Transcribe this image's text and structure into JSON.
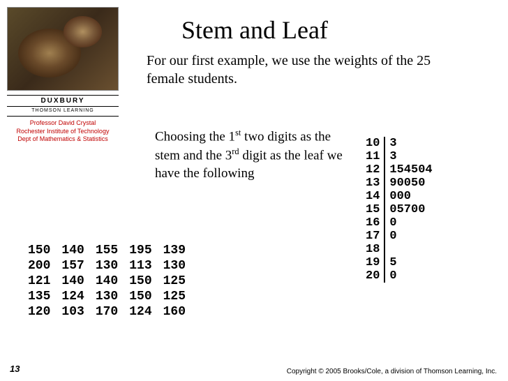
{
  "title": "Stem and Leaf",
  "intro": "For our first example, we use the weights of the 25 female students.",
  "choosing_html": "Choosing the 1<sup>st</sup> two digits as the stem and the 3<sup>rd</sup> digit as the leaf we have the following",
  "publisher": "DUXBURY",
  "publisher_sub": "THOMSON LEARNING",
  "professor": {
    "name": "Professor David Crystal",
    "inst": "Rochester Institute of Technology",
    "dept": "Dept of Mathematics & Statistics"
  },
  "raw_data": {
    "rows": [
      [
        "150",
        "140",
        "155",
        "195",
        "139"
      ],
      [
        "200",
        "157",
        "130",
        "113",
        "130"
      ],
      [
        "121",
        "140",
        "140",
        "150",
        "125"
      ],
      [
        "135",
        "124",
        "130",
        "150",
        "125"
      ],
      [
        "120",
        "103",
        "170",
        "124",
        "160"
      ]
    ]
  },
  "stem_leaf": {
    "rows": [
      {
        "stem": "10",
        "leaf": "3"
      },
      {
        "stem": "11",
        "leaf": "3"
      },
      {
        "stem": "12",
        "leaf": "154504"
      },
      {
        "stem": "13",
        "leaf": "90050"
      },
      {
        "stem": "14",
        "leaf": "000"
      },
      {
        "stem": "15",
        "leaf": "05700"
      },
      {
        "stem": "16",
        "leaf": "0"
      },
      {
        "stem": "17",
        "leaf": "0"
      },
      {
        "stem": "18",
        "leaf": ""
      },
      {
        "stem": "19",
        "leaf": "5"
      },
      {
        "stem": "20",
        "leaf": "0"
      }
    ]
  },
  "page_number": "13",
  "copyright": "Copyright © 2005 Brooks/Cole, a division of Thomson Learning, Inc."
}
